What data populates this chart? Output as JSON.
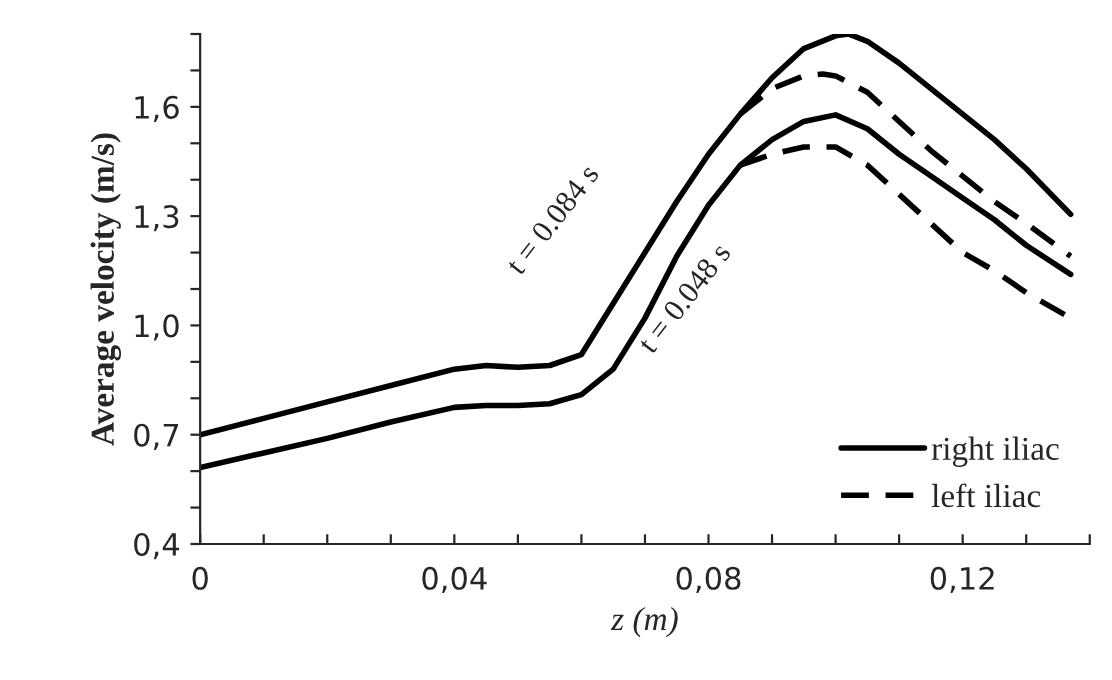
{
  "chart_data": {
    "type": "line",
    "xlabel": "z (m)",
    "ylabel": "Average velocity (m/s)",
    "xlim": [
      0,
      0.14
    ],
    "ylim": [
      0.4,
      1.8
    ],
    "xticks": [
      {
        "value": 0,
        "label": "0"
      },
      {
        "value": 0.01,
        "label": null
      },
      {
        "value": 0.02,
        "label": null
      },
      {
        "value": 0.03,
        "label": null
      },
      {
        "value": 0.04,
        "label": "0,04"
      },
      {
        "value": 0.05,
        "label": null
      },
      {
        "value": 0.06,
        "label": null
      },
      {
        "value": 0.07,
        "label": null
      },
      {
        "value": 0.08,
        "label": "0,08"
      },
      {
        "value": 0.09,
        "label": null
      },
      {
        "value": 0.1,
        "label": null
      },
      {
        "value": 0.11,
        "label": null
      },
      {
        "value": 0.12,
        "label": "0,12"
      },
      {
        "value": 0.13,
        "label": null
      },
      {
        "value": 0.14,
        "label": null
      }
    ],
    "yticks": [
      {
        "value": 0.4,
        "label": "0,4"
      },
      {
        "value": 0.5,
        "label": null
      },
      {
        "value": 0.6,
        "label": null
      },
      {
        "value": 0.7,
        "label": "0,7"
      },
      {
        "value": 0.8,
        "label": null
      },
      {
        "value": 0.9,
        "label": null
      },
      {
        "value": 1.0,
        "label": "1,0"
      },
      {
        "value": 1.1,
        "label": null
      },
      {
        "value": 1.2,
        "label": null
      },
      {
        "value": 1.3,
        "label": "1,3"
      },
      {
        "value": 1.4,
        "label": null
      },
      {
        "value": 1.5,
        "label": null
      },
      {
        "value": 1.6,
        "label": "1,6"
      },
      {
        "value": 1.7,
        "label": null
      },
      {
        "value": 1.8,
        "label": null
      }
    ],
    "grid": false,
    "legend": "bottom right",
    "series": [
      {
        "name": "right iliac",
        "color": "#000000",
        "line_style": "solid",
        "x": [
          0,
          0.01,
          0.02,
          0.03,
          0.04,
          0.045,
          0.05,
          0.055,
          0.06,
          0.065,
          0.07,
          0.075,
          0.08,
          0.085,
          0.09,
          0.095,
          0.1,
          0.102,
          0.105,
          0.11,
          0.115,
          0.12,
          0.125,
          0.13,
          0.137
        ],
        "values": [
          0.7,
          0.745,
          0.79,
          0.835,
          0.88,
          0.89,
          0.885,
          0.89,
          0.92,
          1.06,
          1.2,
          1.34,
          1.47,
          1.58,
          1.68,
          1.76,
          1.795,
          1.8,
          1.78,
          1.72,
          1.65,
          1.58,
          1.51,
          1.43,
          1.305
        ]
      },
      {
        "color": "#000000",
        "line_style": "solid",
        "x": [
          0,
          0.01,
          0.02,
          0.03,
          0.04,
          0.045,
          0.05,
          0.055,
          0.06,
          0.065,
          0.07,
          0.075,
          0.08,
          0.085,
          0.09,
          0.095,
          0.1,
          0.105,
          0.11,
          0.115,
          0.12,
          0.125,
          0.13,
          0.137
        ],
        "values": [
          0.61,
          0.65,
          0.69,
          0.735,
          0.775,
          0.78,
          0.78,
          0.785,
          0.81,
          0.88,
          1.02,
          1.19,
          1.33,
          1.44,
          1.51,
          1.56,
          1.578,
          1.54,
          1.47,
          1.41,
          1.35,
          1.29,
          1.22,
          1.14
        ]
      },
      {
        "name": "left iliac",
        "color": "#000000",
        "line_style": "dashed",
        "x": [
          0.085,
          0.09,
          0.095,
          0.098,
          0.1,
          0.105,
          0.11,
          0.115,
          0.12,
          0.125,
          0.13,
          0.137
        ],
        "values": [
          1.58,
          1.65,
          1.685,
          1.69,
          1.685,
          1.64,
          1.56,
          1.48,
          1.41,
          1.34,
          1.28,
          1.19
        ]
      },
      {
        "color": "#000000",
        "line_style": "dashed",
        "x": [
          0.085,
          0.09,
          0.095,
          0.1,
          0.105,
          0.11,
          0.115,
          0.12,
          0.125,
          0.13,
          0.137
        ],
        "values": [
          1.44,
          1.47,
          1.49,
          1.49,
          1.44,
          1.36,
          1.28,
          1.2,
          1.15,
          1.09,
          1.02
        ]
      }
    ],
    "annotations": [
      {
        "text": "t = 0.084 s",
        "x": 0.068,
        "y": 1.15
      },
      {
        "text": "t = 0.048 s",
        "x": 0.08,
        "y": 1.3
      }
    ]
  }
}
